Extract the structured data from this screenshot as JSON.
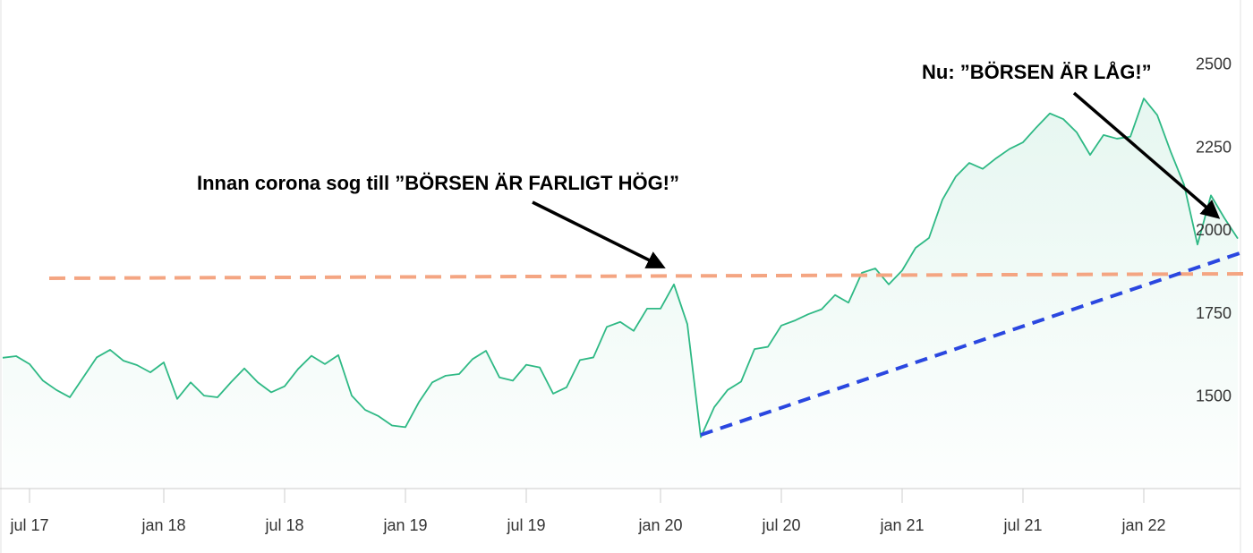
{
  "chart_data": {
    "type": "area-line",
    "annotations": [
      "Innan corona sog till ”BÖRSEN ÄR FARLIGT HÖG!”",
      "Nu: ”BÖRSEN ÄR LÅG!”"
    ],
    "categories": [
      null,
      null,
      "jul 17",
      null,
      null,
      null,
      null,
      null,
      null,
      null,
      null,
      null,
      "jan 18",
      null,
      null,
      null,
      null,
      null,
      null,
      null,
      null,
      "jul 18",
      null,
      null,
      null,
      null,
      null,
      null,
      null,
      null,
      "jan 19",
      null,
      null,
      null,
      null,
      null,
      null,
      null,
      null,
      "jul 19",
      null,
      null,
      null,
      null,
      null,
      null,
      null,
      null,
      null,
      "jan 20",
      null,
      null,
      null,
      null,
      null,
      null,
      null,
      null,
      "jul 20",
      null,
      null,
      null,
      null,
      null,
      null,
      null,
      null,
      "jan 21",
      null,
      null,
      null,
      null,
      null,
      null,
      null,
      null,
      "jul 21",
      null,
      null,
      null,
      null,
      null,
      null,
      null,
      null,
      "jan 22",
      null,
      null,
      null,
      null,
      null,
      null,
      null
    ],
    "values": [
      1619,
      1624,
      1600,
      1550,
      1522,
      1500,
      1560,
      1620,
      1643,
      1610,
      1597,
      1575,
      1605,
      1495,
      1545,
      1505,
      1500,
      1545,
      1587,
      1545,
      1515,
      1533,
      1585,
      1625,
      1600,
      1627,
      1505,
      1462,
      1443,
      1415,
      1410,
      1485,
      1545,
      1565,
      1570,
      1615,
      1640,
      1560,
      1550,
      1598,
      1590,
      1511,
      1530,
      1612,
      1620,
      1712,
      1727,
      1700,
      1767,
      1767,
      1840,
      1720,
      1380,
      1470,
      1522,
      1547,
      1645,
      1652,
      1716,
      1731,
      1750,
      1765,
      1808,
      1785,
      1875,
      1888,
      1840,
      1882,
      1950,
      1980,
      2095,
      2165,
      2206,
      2188,
      2220,
      2248,
      2268,
      2313,
      2355,
      2338,
      2298,
      2230,
      2290,
      2279,
      2285,
      2400,
      2350,
      2240,
      2140,
      1960,
      2108,
      2040,
      1978
    ],
    "color": "#2fb985",
    "ylim": [
      1225,
      2640
    ],
    "yticks": [
      1500,
      1750,
      2000,
      2250,
      2500
    ],
    "grid": false
  }
}
